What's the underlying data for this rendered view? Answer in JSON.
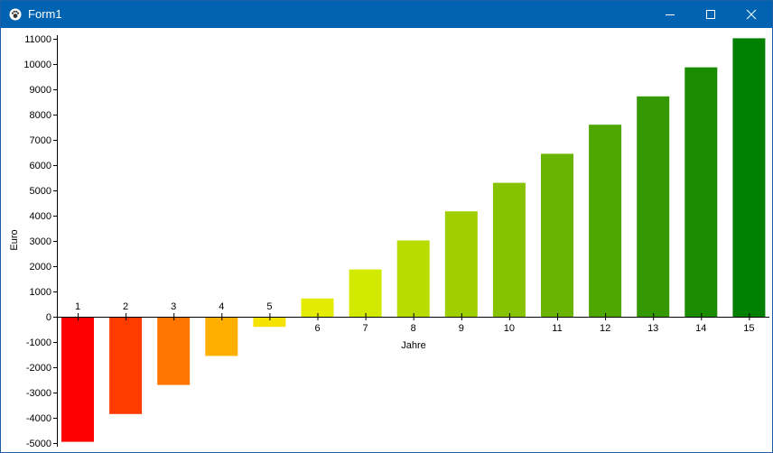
{
  "window": {
    "title": "Form1",
    "icon": "paw-icon",
    "controls": [
      "minimize-icon",
      "maximize-icon",
      "close-icon"
    ]
  },
  "chart_data": {
    "type": "bar",
    "categories": [
      "1",
      "2",
      "3",
      "4",
      "5",
      "6",
      "7",
      "8",
      "9",
      "10",
      "11",
      "12",
      "13",
      "14",
      "15"
    ],
    "values": [
      -4950,
      -3850,
      -2700,
      -1550,
      -400,
      720,
      1870,
      3020,
      4170,
      5300,
      6450,
      7600,
      8720,
      9870,
      11020
    ],
    "colors": [
      "#ff0000",
      "#ff3b00",
      "#ff7700",
      "#ffaf00",
      "#f5e200",
      "#e3eb00",
      "#d2e900",
      "#b9dc00",
      "#a0cf00",
      "#86c200",
      "#69b400",
      "#4ea600",
      "#349900",
      "#1b8c00",
      "#007f00"
    ],
    "xlabel": "Jahre",
    "ylabel": "Euro",
    "ylim": [
      -5000,
      11000
    ],
    "ytick_step": 1000,
    "grid": false,
    "legend": "none"
  }
}
